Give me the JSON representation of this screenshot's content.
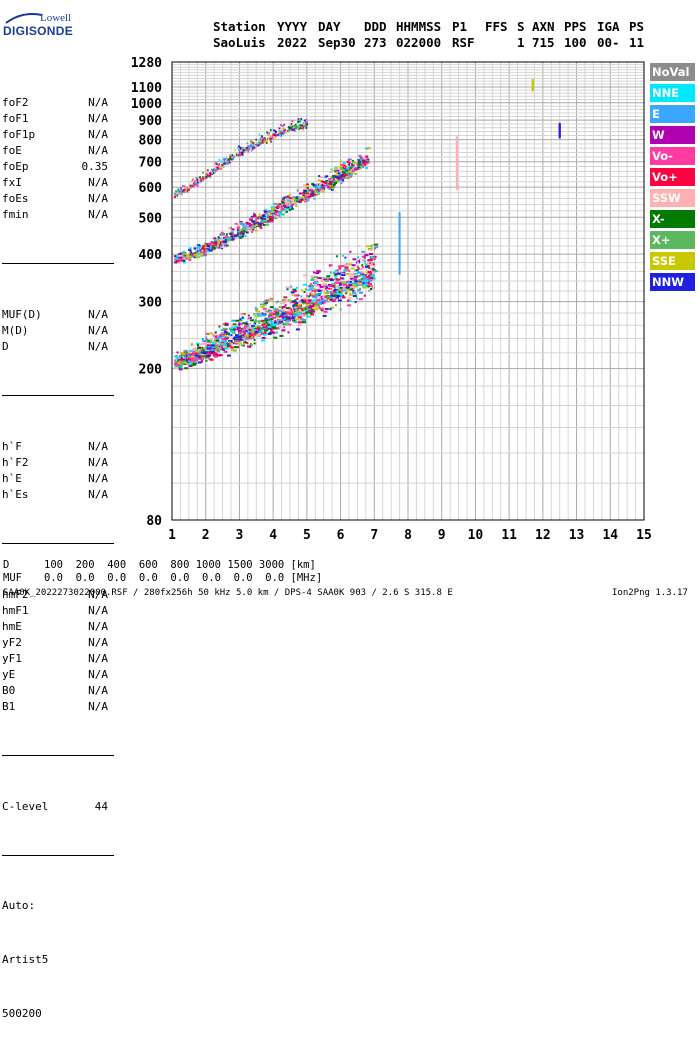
{
  "logo": {
    "line1": "Lowell",
    "line2": "DIGISONDE"
  },
  "header": {
    "labels": {
      "station": "Station",
      "yyyy": "YYYY",
      "day": "DAY",
      "ddd": "DDD",
      "hhmmss": "HHMMSS",
      "p1": "P1",
      "ffs": "FFS",
      "s": "S",
      "axn": "AXN",
      "pps": "PPS",
      "iga": "IGA",
      "ps": "PS"
    },
    "values": {
      "station": "SaoLuis",
      "yyyy": "2022",
      "day": "Sep30",
      "ddd": "273",
      "hhmmss": "022000",
      "p1": "RSF",
      "s": "1",
      "axn": "715",
      "pps": "100",
      "iga": "00-",
      "ps": "11"
    }
  },
  "params": {
    "group1": [
      {
        "label": "foF2",
        "value": "N/A"
      },
      {
        "label": "foF1",
        "value": "N/A"
      },
      {
        "label": "foF1p",
        "value": "N/A"
      },
      {
        "label": "foE",
        "value": "N/A"
      },
      {
        "label": "foEp",
        "value": "0.35"
      },
      {
        "label": "fxI",
        "value": "N/A"
      },
      {
        "label": "foEs",
        "value": "N/A"
      },
      {
        "label": "fmin",
        "value": "N/A"
      }
    ],
    "group2": [
      {
        "label": "MUF(D)",
        "value": "N/A"
      },
      {
        "label": "M(D)",
        "value": "N/A"
      },
      {
        "label": "D",
        "value": "N/A"
      }
    ],
    "group3": [
      {
        "label": "h`F",
        "value": "N/A"
      },
      {
        "label": "h`F2",
        "value": "N/A"
      },
      {
        "label": "h`E",
        "value": "N/A"
      },
      {
        "label": "h`Es",
        "value": "N/A"
      }
    ],
    "group4": [
      {
        "label": "hmF2",
        "value": "N/A"
      },
      {
        "label": "hmF1",
        "value": "N/A"
      },
      {
        "label": "hmE",
        "value": "N/A"
      },
      {
        "label": "yF2",
        "value": "N/A"
      },
      {
        "label": "yF1",
        "value": "N/A"
      },
      {
        "label": "yE",
        "value": "N/A"
      },
      {
        "label": "B0",
        "value": "N/A"
      },
      {
        "label": "B1",
        "value": "N/A"
      }
    ],
    "clevel": {
      "label": "C-level",
      "value": "44"
    },
    "auto": [
      "Auto:",
      "Artist5",
      "500200"
    ]
  },
  "legend": [
    {
      "label": "NoVal",
      "color": "#8c8c8c"
    },
    {
      "label": "NNE",
      "color": "#00e8ff"
    },
    {
      "label": "E",
      "color": "#3aa6ff"
    },
    {
      "label": "W",
      "color": "#b000b0"
    },
    {
      "label": "Vo-",
      "color": "#ff3aa0"
    },
    {
      "label": "Vo+",
      "color": "#ff0040"
    },
    {
      "label": "SSW",
      "color": "#ffb0b0"
    },
    {
      "label": "X-",
      "color": "#007a00"
    },
    {
      "label": "X+",
      "color": "#5cb85c"
    },
    {
      "label": "SSE",
      "color": "#c8c800"
    },
    {
      "label": "NNW",
      "color": "#2020e0"
    }
  ],
  "footer": {
    "d_label": "D",
    "d_values": "100  200  400  600  800 1000 1500 3000 [km]",
    "muf_label": "MUF",
    "muf_values": "0.0  0.0  0.0  0.0  0.0  0.0  0.0  0.0 [MHz]",
    "file_info": "SAA0K_2022273022000.RSF / 280fx256h 50 kHz 5.0 km / DPS-4 SAA0K 903 / 2.6 S 315.8 E",
    "version": "Ion2Png 1.3.17"
  },
  "chart_data": {
    "type": "scatter",
    "x": {
      "min": 1,
      "max": 15,
      "ticks": [
        1,
        2,
        3,
        4,
        5,
        6,
        7,
        8,
        9,
        10,
        11,
        12,
        13,
        14,
        15
      ]
    },
    "y": {
      "scale": "log",
      "min": 80,
      "max": 1280,
      "ticks": [
        80,
        200,
        300,
        400,
        500,
        600,
        700,
        800,
        900,
        1000,
        1100,
        1280
      ]
    },
    "grid": true,
    "traces": [
      {
        "name": "F-layer trace",
        "points": [
          [
            1.05,
            205
          ],
          [
            1.5,
            210
          ],
          [
            2.0,
            220
          ],
          [
            2.5,
            230
          ],
          [
            3.0,
            240
          ],
          [
            3.5,
            250
          ],
          [
            4.0,
            262
          ],
          [
            4.5,
            275
          ],
          [
            5.0,
            290
          ],
          [
            5.5,
            305
          ],
          [
            6.0,
            320
          ],
          [
            6.5,
            335
          ],
          [
            7.0,
            350
          ]
        ]
      },
      {
        "name": "2nd hop trace",
        "points": [
          [
            1.05,
            385
          ],
          [
            1.5,
            395
          ],
          [
            2.0,
            410
          ],
          [
            2.5,
            430
          ],
          [
            3.0,
            455
          ],
          [
            3.5,
            480
          ],
          [
            4.0,
            505
          ],
          [
            4.5,
            540
          ],
          [
            5.0,
            570
          ],
          [
            5.5,
            600
          ],
          [
            6.0,
            640
          ],
          [
            6.5,
            680
          ],
          [
            6.8,
            700
          ]
        ]
      },
      {
        "name": "3rd hop trace",
        "points": [
          [
            1.05,
            570
          ],
          [
            1.5,
            600
          ],
          [
            2.0,
            640
          ],
          [
            2.5,
            690
          ],
          [
            3.0,
            740
          ],
          [
            3.5,
            780
          ],
          [
            4.0,
            820
          ],
          [
            4.5,
            850
          ],
          [
            5.0,
            880
          ]
        ]
      }
    ],
    "vertical_marks": [
      {
        "x": 9.45,
        "y_from": 600,
        "y_to": 820,
        "color": "SSW"
      },
      {
        "x": 11.7,
        "y_from": 1090,
        "y_to": 1160,
        "color": "SSE"
      },
      {
        "x": 12.5,
        "y_from": 820,
        "y_to": 890,
        "color": "NNW"
      },
      {
        "x": 7.75,
        "y_from": 360,
        "y_to": 520,
        "color": "E"
      }
    ]
  }
}
